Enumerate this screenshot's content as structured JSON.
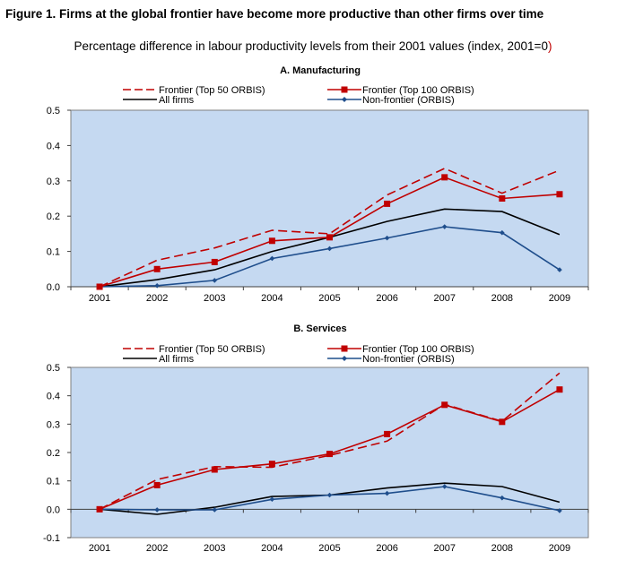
{
  "figure": {
    "title": "Figure 1.  Firms at the global frontier have become more productive than other firms over time",
    "subtitle_main": "Percentage difference in labour productivity levels from their 2001 values (index, 2001=0",
    "subtitle_close": ")"
  },
  "colors": {
    "plot_background": "#c5d9f1",
    "frontier": "#c00000",
    "all_firms": "#000000",
    "non_frontier": "#1f4e8c"
  },
  "chart_data": [
    {
      "type": "line",
      "title": "A. Manufacturing",
      "x": [
        "2001",
        "2002",
        "2003",
        "2004",
        "2005",
        "2006",
        "2007",
        "2008",
        "2009"
      ],
      "ylim": [
        0,
        0.5
      ],
      "yticks": [
        "0.0",
        "0.1",
        "0.2",
        "0.3",
        "0.4",
        "0.5"
      ],
      "grid": false,
      "legend_position": "top",
      "series": [
        {
          "name": "Frontier (Top 50 ORBIS)",
          "style": "dashed",
          "values": [
            0,
            0.075,
            0.11,
            0.16,
            0.15,
            0.26,
            0.335,
            0.265,
            0.33
          ]
        },
        {
          "name": "Frontier (Top 100 ORBIS)",
          "style": "solid-square",
          "values": [
            0,
            0.05,
            0.07,
            0.13,
            0.14,
            0.235,
            0.31,
            0.25,
            0.262
          ]
        },
        {
          "name": "All firms",
          "style": "solid",
          "values": [
            0,
            0.02,
            0.048,
            0.1,
            0.14,
            0.185,
            0.22,
            0.213,
            0.148
          ]
        },
        {
          "name": "Non-frontier (ORBIS)",
          "style": "solid-diamond",
          "values": [
            0,
            0.003,
            0.018,
            0.08,
            0.108,
            0.138,
            0.17,
            0.153,
            0.048
          ]
        }
      ]
    },
    {
      "type": "line",
      "title": "B. Services",
      "x": [
        "2001",
        "2002",
        "2003",
        "2004",
        "2005",
        "2006",
        "2007",
        "2008",
        "2009"
      ],
      "ylim": [
        -0.1,
        0.5
      ],
      "yticks": [
        "-0.1",
        "0.0",
        "0.1",
        "0.2",
        "0.3",
        "0.4",
        "0.5"
      ],
      "grid": false,
      "legend_position": "top",
      "series": [
        {
          "name": "Frontier (Top 50 ORBIS)",
          "style": "dashed",
          "values": [
            0,
            0.105,
            0.15,
            0.148,
            0.19,
            0.24,
            0.37,
            0.31,
            0.48
          ]
        },
        {
          "name": "Frontier (Top 100 ORBIS)",
          "style": "solid-square",
          "values": [
            0,
            0.085,
            0.14,
            0.16,
            0.195,
            0.265,
            0.368,
            0.308,
            0.422
          ]
        },
        {
          "name": "All firms",
          "style": "solid",
          "values": [
            0,
            -0.018,
            0.007,
            0.045,
            0.05,
            0.075,
            0.092,
            0.08,
            0.025
          ]
        },
        {
          "name": "Non-frontier (ORBIS)",
          "style": "solid-diamond",
          "values": [
            0,
            -0.002,
            -0.002,
            0.035,
            0.05,
            0.056,
            0.08,
            0.04,
            -0.005
          ]
        }
      ]
    }
  ]
}
